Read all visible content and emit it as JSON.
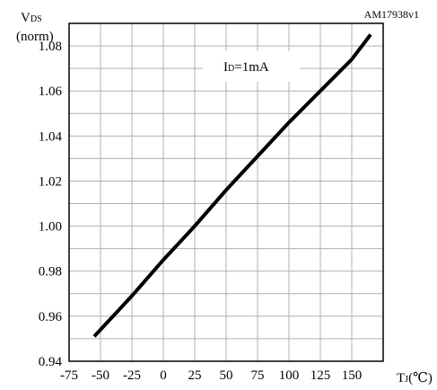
{
  "chart_data": {
    "type": "line",
    "figure_id": "AM17938v1",
    "ylabel_main": "V",
    "ylabel_sub": "DS",
    "ylabel_unit": "(norm)",
    "xlabel_main": "T",
    "xlabel_sub": "J",
    "xlabel_unit": "(℃)",
    "annotation_main": "I",
    "annotation_sub": "D",
    "annotation_value": "=1mA",
    "xlim": [
      -75,
      175
    ],
    "ylim": [
      0.94,
      1.09
    ],
    "x_ticks": [
      -75,
      -50,
      -25,
      0,
      25,
      50,
      75,
      100,
      125,
      150
    ],
    "x_tick_labels": [
      "-75",
      "-50",
      "-25",
      "0",
      "25",
      "50",
      "75",
      "100",
      "125",
      "150"
    ],
    "y_ticks": [
      0.94,
      0.96,
      0.98,
      1.0,
      1.02,
      1.04,
      1.06,
      1.08
    ],
    "y_tick_labels": [
      "0.94",
      "0.96",
      "0.98",
      "1.00",
      "1.02",
      "1.04",
      "1.06",
      "1.08"
    ],
    "x_grid": [
      -75,
      -50,
      -25,
      0,
      25,
      50,
      75,
      100,
      125,
      150,
      175
    ],
    "y_grid": [
      0.94,
      0.95,
      0.96,
      0.97,
      0.98,
      0.99,
      1.0,
      1.01,
      1.02,
      1.03,
      1.04,
      1.05,
      1.06,
      1.07,
      1.08,
      1.09
    ],
    "grid": true,
    "series": [
      {
        "x": [
          -55,
          -25,
          0,
          25,
          50,
          75,
          100,
          125,
          150,
          165
        ],
        "y": [
          0.951,
          0.969,
          0.985,
          1.0,
          1.016,
          1.031,
          1.046,
          1.06,
          1.074,
          1.085
        ],
        "color": "#000000"
      }
    ]
  }
}
